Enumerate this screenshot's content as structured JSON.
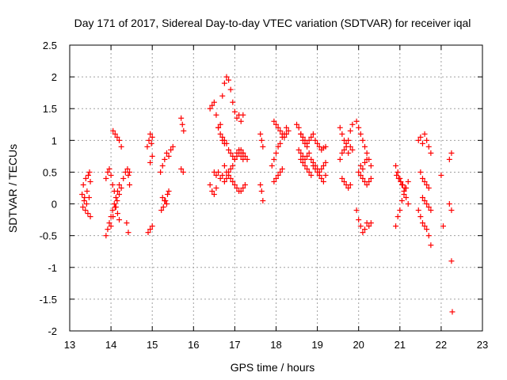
{
  "chart_data": {
    "type": "scatter",
    "title": "Day 171 of 2017, Sidereal Day-to-day VTEC variation (SDTVAR) for receiver iqal",
    "xlabel": "GPS time / hours",
    "ylabel": "SDTVAR / TECUs",
    "xlim": [
      13,
      23
    ],
    "ylim": [
      -2,
      2.5
    ],
    "xticks": [
      "13",
      "14",
      "15",
      "16",
      "17",
      "18",
      "19",
      "20",
      "21",
      "22",
      "23"
    ],
    "yticks": [
      "2.5",
      "2",
      "1.5",
      "1",
      "0.5",
      "0",
      "-0.5",
      "-1",
      "-1.5",
      "-2"
    ],
    "grid": true,
    "marker": "+",
    "color": "#ff0000",
    "series": [
      {
        "name": "SDTVAR",
        "x": [
          13.3,
          13.33,
          13.36,
          13.39,
          13.42,
          13.45,
          13.48,
          13.5,
          13.32,
          13.35,
          13.38,
          13.41,
          13.44,
          13.47,
          13.5,
          13.88,
          13.92,
          13.96,
          14.0,
          14.04,
          14.08,
          14.12,
          14.16,
          14.2,
          13.88,
          13.92,
          13.96,
          14.0,
          14.04,
          14.08,
          14.12,
          14.16,
          14.2,
          14.0,
          14.05,
          14.1,
          14.15,
          14.2,
          14.25,
          14.3,
          14.05,
          14.1,
          14.15,
          14.2,
          14.25,
          14.35,
          14.4,
          14.42,
          14.45,
          14.38,
          14.42,
          14.45,
          14.88,
          14.92,
          14.95,
          14.98,
          15.0,
          14.95,
          15.0,
          14.9,
          14.95,
          15.0,
          15.2,
          15.25,
          15.3,
          15.35,
          15.4,
          15.45,
          15.5,
          15.25,
          15.3,
          15.35,
          15.4,
          15.22,
          15.27,
          15.32,
          15.37,
          15.7,
          15.73,
          15.76,
          15.7,
          15.75,
          16.4,
          16.45,
          16.5,
          16.55,
          16.6,
          16.65,
          16.7,
          16.75,
          16.8,
          16.85,
          16.9,
          16.95,
          17.0,
          17.05,
          17.1,
          17.15,
          17.2,
          16.5,
          16.55,
          16.6,
          16.65,
          16.7,
          16.75,
          16.8,
          16.85,
          16.9,
          16.95,
          17.0,
          17.05,
          17.1,
          17.15,
          17.2,
          16.4,
          16.45,
          16.5,
          16.55,
          16.7,
          16.75,
          16.8,
          16.85,
          16.9,
          16.95,
          17.0,
          17.05,
          17.1,
          17.15,
          17.2,
          16.75,
          16.8,
          16.85,
          16.9,
          16.95,
          17.0,
          17.05,
          17.1,
          17.15,
          17.2,
          17.25,
          16.6,
          16.65,
          16.7,
          16.75,
          17.2,
          17.25,
          17.3,
          17.62,
          17.65,
          17.68,
          17.62,
          17.65,
          17.68,
          17.95,
          18.0,
          18.05,
          18.1,
          18.15,
          18.2,
          18.25,
          18.3,
          17.9,
          17.95,
          18.0,
          18.05,
          18.1,
          18.15,
          18.2,
          18.25,
          17.95,
          18.0,
          18.05,
          18.1,
          18.15,
          18.5,
          18.55,
          18.6,
          18.65,
          18.7,
          18.75,
          18.8,
          18.85,
          18.9,
          18.95,
          19.0,
          19.05,
          19.1,
          19.15,
          19.2,
          18.55,
          18.6,
          18.65,
          18.7,
          18.75,
          18.8,
          18.85,
          18.9,
          18.95,
          19.0,
          19.05,
          19.1,
          19.15,
          19.2,
          18.6,
          18.65,
          18.7,
          18.75,
          18.8,
          18.85,
          18.9,
          18.95,
          19.0,
          19.05,
          19.1,
          19.15,
          19.2,
          18.6,
          18.65,
          18.7,
          18.75,
          19.55,
          19.6,
          19.65,
          19.7,
          19.75,
          19.8,
          19.85,
          19.55,
          19.6,
          19.65,
          19.7,
          19.75,
          19.8,
          19.85,
          19.6,
          19.65,
          19.7,
          19.75,
          19.8,
          19.95,
          20.0,
          20.05,
          20.1,
          20.15,
          20.2,
          20.25,
          20.3,
          19.95,
          20.0,
          20.05,
          20.1,
          20.15,
          20.2,
          20.25,
          20.3,
          20.0,
          20.05,
          20.1,
          20.15,
          20.2,
          20.25,
          20.3,
          20.05,
          20.1,
          20.15,
          20.2,
          20.9,
          20.95,
          21.0,
          21.05,
          21.1,
          21.15,
          21.2,
          20.9,
          20.95,
          21.0,
          21.05,
          21.1,
          21.15,
          21.2,
          20.92,
          20.97,
          21.02,
          21.07,
          21.12,
          21.45,
          21.5,
          21.55,
          21.6,
          21.65,
          21.7,
          21.75,
          21.45,
          21.5,
          21.55,
          21.6,
          21.65,
          21.7,
          21.75,
          21.5,
          21.55,
          21.6,
          21.65,
          21.7,
          21.55,
          21.6,
          21.65,
          21.7,
          21.75,
          22.0,
          22.05,
          22.2,
          22.25,
          22.2,
          22.25,
          22.25,
          22.27
        ],
        "y": [
          0.15,
          0.3,
          0.1,
          0.4,
          0.2,
          0.45,
          0.5,
          0.35,
          -0.05,
          0.05,
          -0.1,
          0.0,
          -0.15,
          0.1,
          -0.2,
          -0.5,
          -0.4,
          -0.3,
          -0.2,
          -0.1,
          0.0,
          0.1,
          0.2,
          0.3,
          0.4,
          0.5,
          0.55,
          0.45,
          0.3,
          0.2,
          -0.05,
          -0.15,
          -0.25,
          -0.35,
          -0.2,
          -0.05,
          0.05,
          0.15,
          0.25,
          0.4,
          1.15,
          1.1,
          1.05,
          1.0,
          0.9,
          0.5,
          0.55,
          0.45,
          0.5,
          -0.3,
          -0.45,
          0.3,
          0.9,
          1.0,
          1.1,
          0.95,
          1.05,
          0.65,
          0.75,
          -0.45,
          -0.4,
          -0.35,
          0.5,
          0.6,
          0.7,
          0.8,
          0.75,
          0.85,
          0.9,
          0.1,
          0.05,
          0.0,
          0.2,
          -0.1,
          -0.05,
          0.05,
          0.15,
          1.35,
          1.25,
          1.15,
          0.55,
          0.5,
          1.5,
          1.55,
          1.6,
          1.4,
          1.2,
          1.1,
          1.05,
          1.0,
          0.95,
          0.85,
          0.8,
          0.75,
          0.7,
          0.8,
          0.85,
          0.75,
          0.7,
          0.5,
          0.45,
          0.5,
          0.4,
          0.45,
          0.35,
          0.4,
          0.5,
          0.55,
          0.6,
          0.7,
          0.75,
          0.8,
          0.85,
          0.8,
          0.3,
          0.2,
          0.15,
          0.25,
          1.7,
          1.9,
          2.0,
          1.95,
          1.8,
          1.6,
          1.45,
          1.35,
          1.4,
          1.3,
          1.4,
          0.6,
          0.5,
          0.45,
          0.4,
          0.35,
          0.3,
          0.25,
          0.2,
          0.2,
          0.25,
          0.3,
          1.2,
          1.25,
          1.0,
          0.95,
          0.8,
          0.75,
          0.7,
          0.3,
          0.2,
          0.05,
          1.1,
          1.0,
          0.9,
          1.3,
          1.25,
          1.2,
          1.15,
          1.1,
          1.05,
          1.1,
          1.15,
          0.6,
          0.7,
          0.8,
          0.9,
          0.95,
          1.05,
          1.1,
          1.2,
          0.35,
          0.4,
          0.45,
          0.5,
          0.55,
          1.25,
          1.2,
          1.1,
          1.0,
          0.95,
          0.9,
          1.0,
          1.05,
          1.1,
          1.0,
          0.95,
          0.9,
          0.85,
          0.88,
          0.9,
          0.85,
          0.8,
          0.75,
          0.7,
          0.75,
          0.8,
          0.7,
          0.65,
          0.6,
          0.55,
          0.5,
          0.55,
          0.6,
          0.65,
          0.7,
          0.65,
          0.6,
          0.55,
          0.5,
          0.45,
          0.6,
          0.55,
          0.5,
          0.45,
          0.4,
          0.35,
          0.45,
          1.1,
          1.05,
          1.0,
          0.95,
          1.2,
          1.1,
          1.0,
          0.9,
          0.8,
          1.15,
          1.25,
          0.7,
          0.8,
          0.85,
          0.95,
          1.0,
          0.9,
          0.85,
          0.4,
          0.35,
          0.3,
          0.25,
          0.3,
          1.3,
          1.2,
          1.1,
          1.0,
          0.9,
          0.8,
          0.7,
          0.6,
          -0.1,
          -0.25,
          -0.35,
          -0.45,
          -0.4,
          -0.3,
          -0.35,
          -0.3,
          0.5,
          0.45,
          0.4,
          0.35,
          0.3,
          0.35,
          0.4,
          0.6,
          0.55,
          0.65,
          0.7,
          0.6,
          0.5,
          0.4,
          0.3,
          0.2,
          0.1,
          0.0,
          -0.35,
          -0.2,
          -0.1,
          0.05,
          0.15,
          0.25,
          0.35,
          0.45,
          0.4,
          0.35,
          0.3,
          0.25,
          1.0,
          1.05,
          0.95,
          1.1,
          1.0,
          0.9,
          0.8,
          -0.1,
          -0.2,
          -0.3,
          -0.35,
          -0.4,
          -0.5,
          -0.65,
          0.5,
          0.4,
          0.35,
          0.3,
          0.25,
          0.1,
          0.05,
          0.0,
          -0.05,
          -0.1,
          0.45,
          -0.35,
          0.7,
          0.8,
          0.0,
          -0.1,
          -0.9,
          -1.7
        ]
      }
    ]
  }
}
